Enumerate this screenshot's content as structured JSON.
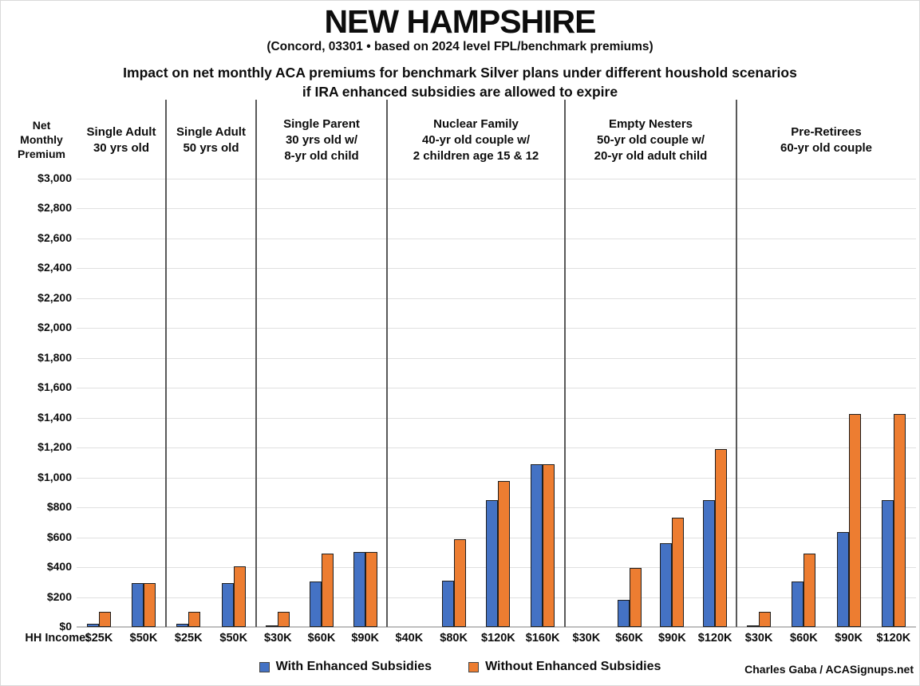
{
  "title": "NEW HAMPSHIRE",
  "subtitle": "(Concord, 03301 • based on 2024 level FPL/benchmark premiums)",
  "heading_line1": "Impact on net monthly ACA premiums for benchmark Silver plans under different houshold scenarios",
  "heading_line2": "if IRA enhanced subsidies are allowed to expire",
  "y_axis_title": "Net\nMonthly\nPremium",
  "x_axis_label": "HH Income:",
  "credit": "Charles Gaba / ACASignups.net",
  "colors": {
    "with_subsidies": "#4472C4",
    "without_subsidies": "#ED7D31",
    "divider": "#595959",
    "gridline": "#e0e0e0"
  },
  "legend": {
    "items": [
      {
        "label": "With Enhanced Subsidies",
        "color": "#4472C4"
      },
      {
        "label": "Without Enhanced Subsidies",
        "color": "#ED7D31"
      }
    ]
  },
  "chart_data": {
    "type": "bar",
    "title": "Impact on net monthly ACA premiums for benchmark Silver plans under different houshold scenarios if IRA enhanced subsidies are allowed to expire",
    "ylabel": "Net Monthly Premium",
    "xlabel": "HH Income:",
    "ylim": [
      0,
      3000
    ],
    "ytick_step": 200,
    "grid": true,
    "legend_position": "bottom",
    "series_names": [
      "With Enhanced Subsidies",
      "Without Enhanced Subsidies"
    ],
    "panels": [
      {
        "header": "Single Adult\n30 yrs old",
        "incomes": [
          "$25K",
          "$50K"
        ],
        "with_enhanced": [
          20,
          295
        ],
        "without_enhanced": [
          100,
          295
        ]
      },
      {
        "header": "Single Adult\n50 yrs old",
        "incomes": [
          "$25K",
          "$50K"
        ],
        "with_enhanced": [
          20,
          295
        ],
        "without_enhanced": [
          100,
          405
        ]
      },
      {
        "header": "Single Parent\n30 yrs old w/\n8-yr old child",
        "incomes": [
          "$30K",
          "$60K",
          "$90K"
        ],
        "with_enhanced": [
          5,
          305,
          500
        ],
        "without_enhanced": [
          100,
          490,
          500
        ]
      },
      {
        "header": "Nuclear Family\n40-yr old couple w/\n2 children age 15 & 12",
        "incomes": [
          "$40K",
          "$80K",
          "$120K",
          "$160K"
        ],
        "with_enhanced": [
          0,
          310,
          850,
          1090
        ],
        "without_enhanced": [
          0,
          585,
          975,
          1090
        ]
      },
      {
        "header": "Empty Nesters\n50-yr old couple w/\n20-yr old adult child",
        "incomes": [
          "$30K",
          "$60K",
          "$90K",
          "$120K"
        ],
        "with_enhanced": [
          0,
          180,
          560,
          850
        ],
        "without_enhanced": [
          0,
          395,
          730,
          1190
        ]
      },
      {
        "header": "Pre-Retirees\n60-yr old couple",
        "incomes": [
          "$30K",
          "$60K",
          "$90K",
          "$120K"
        ],
        "with_enhanced": [
          5,
          305,
          635,
          850
        ],
        "without_enhanced": [
          100,
          490,
          1425,
          1425
        ]
      }
    ]
  }
}
